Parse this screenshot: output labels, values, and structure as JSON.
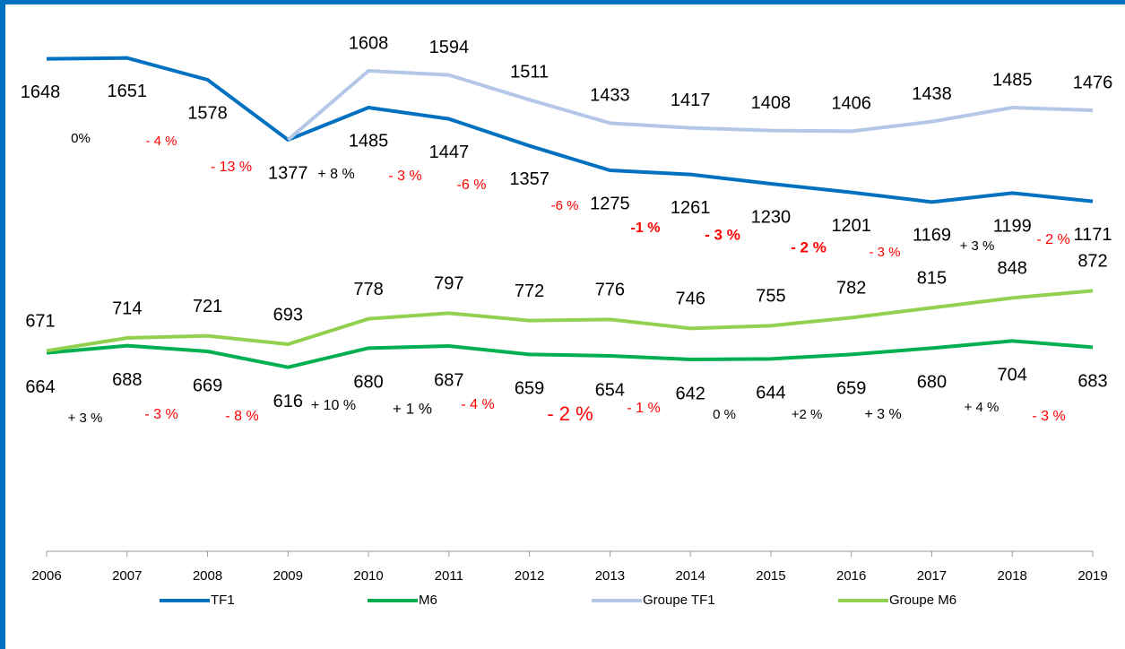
{
  "chart_data": {
    "type": "line",
    "categories": [
      "2006",
      "2007",
      "2008",
      "2009",
      "2010",
      "2011",
      "2012",
      "2013",
      "2014",
      "2015",
      "2016",
      "2017",
      "2018",
      "2019"
    ],
    "ylim": [
      0,
      1800
    ],
    "legend": "bottom",
    "series": [
      {
        "name": "TF1",
        "color": "#0070c0",
        "values": [
          1648,
          1651,
          1578,
          1377,
          1485,
          1447,
          1357,
          1275,
          1261,
          1230,
          1201,
          1169,
          1199,
          1171
        ]
      },
      {
        "name": "M6",
        "color": "#00b050",
        "values": [
          664,
          688,
          669,
          616,
          680,
          687,
          659,
          654,
          642,
          644,
          659,
          680,
          704,
          683
        ]
      },
      {
        "name": "Groupe TF1",
        "color": "#b4c7e7",
        "values": [
          null,
          null,
          null,
          1377,
          1608,
          1594,
          1511,
          1433,
          1417,
          1408,
          1406,
          1438,
          1485,
          1476
        ],
        "value_labels": [
          null,
          null,
          null,
          null,
          "1608",
          "1594",
          "1511",
          "1433",
          "1417",
          "1408",
          "1406",
          "1438",
          "1485",
          "1476"
        ]
      },
      {
        "name": "Groupe M6",
        "color": "#92d050",
        "values": [
          671,
          714,
          721,
          693,
          778,
          797,
          772,
          776,
          746,
          755,
          782,
          815,
          848,
          872
        ]
      }
    ],
    "annotations": [
      {
        "text": "0%",
        "color": "#000000"
      },
      {
        "text": "- 4 %",
        "color": "#ff0000"
      },
      {
        "text": "- 13 %",
        "color": "#ff0000"
      },
      {
        "text": "+ 8 %",
        "color": "#000000"
      },
      {
        "text": "- 3 %",
        "color": "#ff0000"
      },
      {
        "text": "-6  %",
        "color": "#ff0000"
      },
      {
        "text": "-6 %",
        "color": "#ff0000"
      },
      {
        "text": "-1 %",
        "color": "#ff0000",
        "bold": true
      },
      {
        "text": "- 3  %",
        "color": "#ff0000",
        "bold": true
      },
      {
        "text": "- 2  %",
        "color": "#ff0000",
        "bold": true
      },
      {
        "text": "- 3 %",
        "color": "#ff0000"
      },
      {
        "text": "+ 3 %",
        "color": "#000000"
      },
      {
        "text": "- 2 %",
        "color": "#ff0000"
      },
      {
        "text": "+ 3 %",
        "color": "#000000"
      },
      {
        "text": "- 3 %",
        "color": "#ff0000"
      },
      {
        "text": "-  8 %",
        "color": "#ff0000"
      },
      {
        "text": "+ 10 %",
        "color": "#000000"
      },
      {
        "text": "+ 1 %",
        "color": "#000000"
      },
      {
        "text": "- 4  %",
        "color": "#ff0000"
      },
      {
        "text": "- 2 %",
        "color": "#ff0000"
      },
      {
        "text": "- 1  %",
        "color": "#ff0000"
      },
      {
        "text": "0 %",
        "color": "#000000"
      },
      {
        "text": "+2 %",
        "color": "#000000"
      },
      {
        "text": "+ 3 %",
        "color": "#000000"
      },
      {
        "text": "+ 4 %",
        "color": "#000000"
      },
      {
        "text": "- 3 %",
        "color": "#ff0000"
      }
    ]
  }
}
